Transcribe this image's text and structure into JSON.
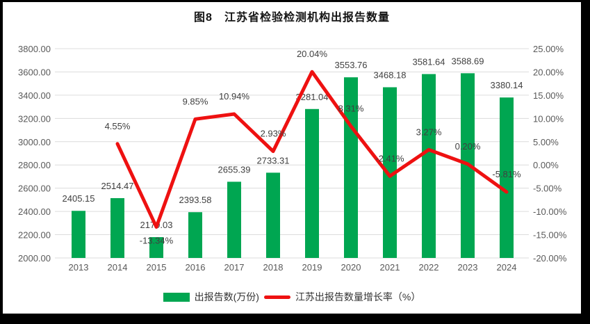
{
  "title": "图8　江苏省检验检测机构出报告数量",
  "chart_data": {
    "type": "bar",
    "combo": "bar-line-dual-axis",
    "categories": [
      "2013",
      "2014",
      "2015",
      "2016",
      "2017",
      "2018",
      "2019",
      "2020",
      "2021",
      "2022",
      "2023",
      "2024"
    ],
    "series": [
      {
        "name": "出报告数(万份)",
        "type": "bar",
        "axis": "left",
        "color": "#00A651",
        "values": [
          2405.15,
          2514.47,
          2179.03,
          2393.58,
          2655.39,
          2733.31,
          3281.04,
          3553.76,
          3468.18,
          3581.64,
          3588.69,
          3380.14
        ]
      },
      {
        "name": "江苏出报告数量增长率（%）",
        "type": "line",
        "axis": "right",
        "color": "#EE1111",
        "values": [
          null,
          4.55,
          -13.34,
          9.85,
          10.94,
          2.93,
          20.04,
          8.31,
          -2.41,
          3.27,
          0.2,
          -5.81
        ]
      }
    ],
    "left_axis": {
      "min": 2000,
      "max": 3800,
      "step": 200,
      "tick_format": "0.00"
    },
    "right_axis": {
      "min": -20,
      "max": 25,
      "step": 5,
      "tick_format": "0.00%"
    },
    "grid": true,
    "legend_position": "bottom",
    "colors": {
      "grid": "#DCDCDC",
      "tick_label": "#595959",
      "data_label": "#404040",
      "frame": "#000000"
    }
  }
}
